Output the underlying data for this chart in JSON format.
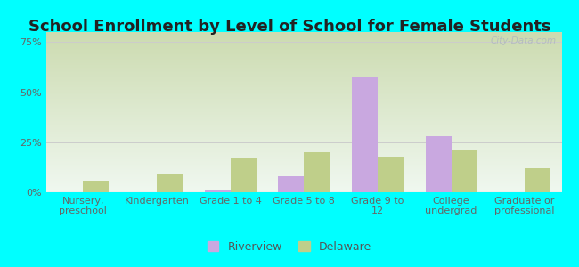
{
  "title": "School Enrollment by Level of School for Female Students",
  "categories": [
    "Nursery,\npreschool",
    "Kindergarten",
    "Grade 1 to 4",
    "Grade 5 to 8",
    "Grade 9 to\n12",
    "College\nundergrad",
    "Graduate or\nprofessional"
  ],
  "riverview": [
    0.0,
    0.0,
    1.0,
    8.0,
    58.0,
    28.0,
    0.0
  ],
  "delaware": [
    6.0,
    9.0,
    17.0,
    20.0,
    18.0,
    21.0,
    12.0
  ],
  "riverview_color": "#c9a8e0",
  "delaware_color": "#bfcf8a",
  "background_color": "#00ffff",
  "title_fontsize": 13,
  "ylabel_ticks": [
    "0%",
    "25%",
    "50%",
    "75%"
  ],
  "ytick_vals": [
    0,
    25,
    50,
    75
  ],
  "ylim": [
    0,
    80
  ],
  "bar_width": 0.35,
  "legend_riverview": "Riverview",
  "legend_delaware": "Delaware",
  "watermark": "City-Data.com",
  "grid_color": "#cccccc",
  "tick_color": "#666666",
  "label_fontsize": 8,
  "grad_top": "#ccdbb0",
  "grad_bottom": "#f0f8f0"
}
